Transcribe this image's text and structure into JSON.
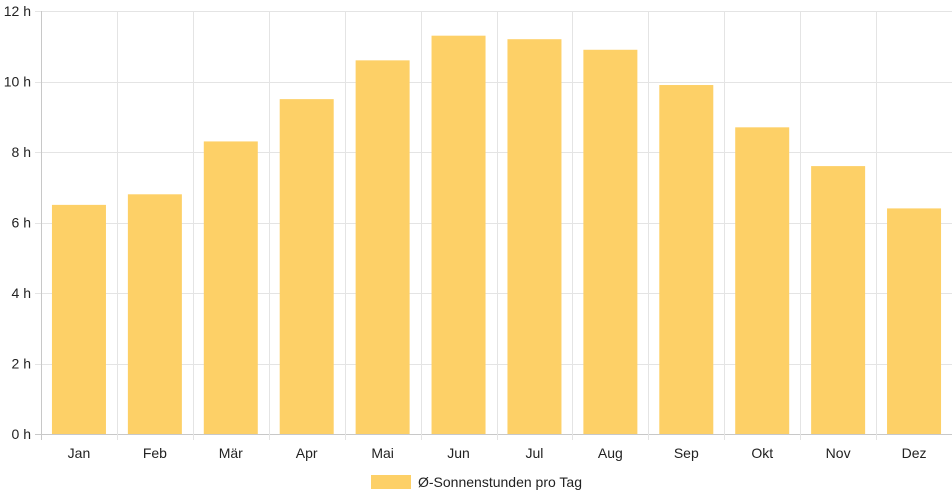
{
  "chart_data": {
    "type": "bar",
    "categories": [
      "Jan",
      "Feb",
      "Mär",
      "Apr",
      "Mai",
      "Jun",
      "Jul",
      "Aug",
      "Sep",
      "Okt",
      "Nov",
      "Dez"
    ],
    "series": [
      {
        "name": "Ø-Sonnenstunden pro Tag",
        "values": [
          6.5,
          6.8,
          8.3,
          9.5,
          10.6,
          11.3,
          11.2,
          10.9,
          9.9,
          8.7,
          7.6,
          6.4
        ]
      }
    ],
    "ylim": [
      0,
      12
    ],
    "yticks": [
      0,
      2,
      4,
      6,
      8,
      10,
      12
    ],
    "ytick_suffix": " h",
    "grid": true,
    "legend_position": "bottom",
    "colors": {
      "bar": "#fdd067",
      "grid": "#e4e4e4",
      "axis": "#c8c8c8",
      "text": "#222222"
    }
  }
}
